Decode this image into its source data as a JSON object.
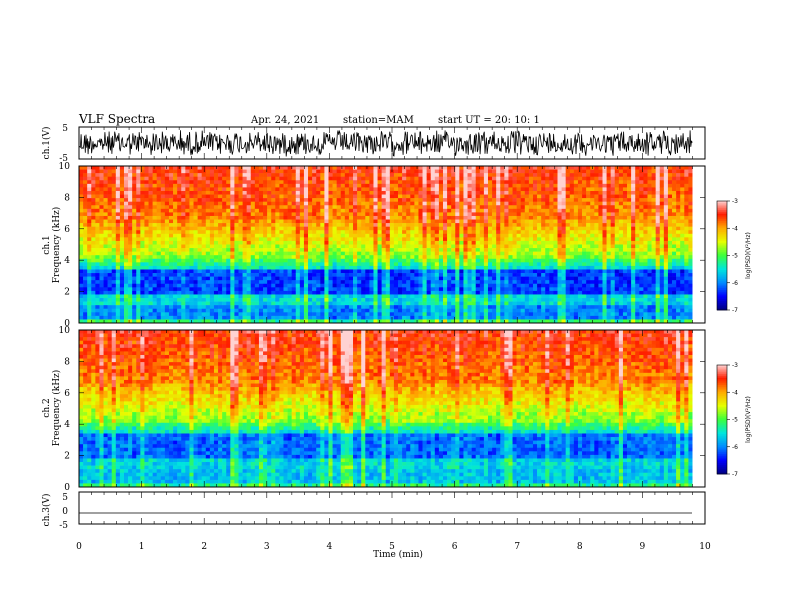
{
  "header": {
    "title": "VLF Spectra",
    "date": "Apr. 24, 2021",
    "station": "station=MAM",
    "start": "start UT =  20: 10: 1"
  },
  "chart_data": [
    {
      "type": "line",
      "name": "ch1-waveform",
      "ylabel": "ch.1(V)",
      "ylim": [
        -5,
        5
      ],
      "yticks": [
        "5",
        "-5"
      ]
    },
    {
      "type": "heatmap",
      "name": "ch1-spectrogram",
      "ylabel": "ch.1",
      "ylabel2": "Frequency (kHz)",
      "ylim": [
        0,
        10
      ],
      "yticks": [
        "0",
        "2",
        "4",
        "6",
        "8",
        "10"
      ],
      "colorbar": {
        "label": "log(PSD)(V²/Hz)",
        "range": [
          -7,
          -3
        ],
        "ticks": [
          "-3",
          "-4",
          "-5",
          "-6",
          "-7"
        ],
        "colors": [
          "#000080",
          "#0000ff",
          "#00b4ff",
          "#00ffc8",
          "#80ff00",
          "#ffff00",
          "#ff8000",
          "#ff0000",
          "#ffc8c8"
        ]
      }
    },
    {
      "type": "heatmap",
      "name": "ch2-spectrogram",
      "ylabel": "ch.2",
      "ylabel2": "Frequency (kHz)",
      "ylim": [
        0,
        10
      ],
      "yticks": [
        "0",
        "2",
        "4",
        "6",
        "8",
        "10"
      ],
      "colorbar": {
        "label": "log(PSD)(V²/Hz)",
        "range": [
          -7,
          -3
        ],
        "ticks": [
          "-3",
          "-4",
          "-5",
          "-6",
          "-7"
        ]
      }
    },
    {
      "type": "line",
      "name": "ch3-waveform",
      "ylabel": "ch.3(V)",
      "ylim": [
        -5,
        5
      ],
      "yticks": [
        "5",
        "0",
        "-5"
      ]
    }
  ],
  "xaxis": {
    "label": "Time (min)",
    "ticks": [
      "0",
      "1",
      "2",
      "3",
      "4",
      "5",
      "6",
      "7",
      "8",
      "9",
      "10"
    ],
    "xlim": [
      0,
      10
    ]
  }
}
